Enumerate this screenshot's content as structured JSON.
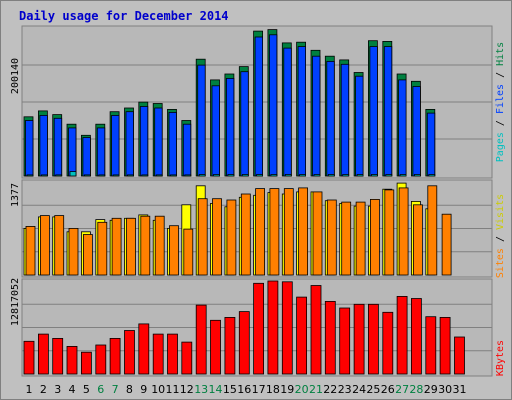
{
  "chart_data": {
    "type": "bar",
    "title": "Daily usage for December 2014",
    "categories": [
      "1",
      "2",
      "3",
      "4",
      "5",
      "6",
      "7",
      "8",
      "9",
      "10",
      "11",
      "12",
      "13",
      "14",
      "15",
      "16",
      "17",
      "18",
      "19",
      "20",
      "21",
      "22",
      "23",
      "24",
      "25",
      "26",
      "27",
      "28",
      "29",
      "30",
      "31"
    ],
    "weekend_days": [
      "6",
      "7",
      "13",
      "14",
      "20",
      "21",
      "27",
      "28"
    ],
    "panels": [
      {
        "name": "hits-files-pages",
        "max_label": "200140",
        "max_value": 200140,
        "axis_label": {
          "pages": "Pages",
          "files": "Files",
          "hits": "Hits",
          "sep": " / "
        },
        "series": [
          {
            "name": "Hits",
            "color": "#008040",
            "values": [
              80000,
              88000,
              83000,
              70000,
              55000,
              70000,
              87000,
              92000,
              100000,
              98000,
              90000,
              75000,
              158000,
              130000,
              138000,
              148000,
              196000,
              198000,
              180000,
              181000,
              170000,
              162000,
              157000,
              140000,
              183000,
              182000,
              138000,
              128000,
              90000,
              0,
              0
            ]
          },
          {
            "name": "Files",
            "color": "#0040ff",
            "values": [
              75000,
              82000,
              78000,
              65000,
              52000,
              65000,
              82000,
              87000,
              94000,
              92000,
              86000,
              70000,
              150000,
              122000,
              132000,
              141000,
              188000,
              191000,
              173000,
              175000,
              162000,
              155000,
              151000,
              135000,
              175000,
              175000,
              130000,
              121000,
              85000,
              0,
              0
            ]
          },
          {
            "name": "Pages",
            "color": "#00c0c0",
            "values": [
              1500,
              1500,
              1500,
              6000,
              1500,
              1500,
              1500,
              1500,
              1500,
              1500,
              1500,
              1500,
              2000,
              2000,
              2000,
              2000,
              2000,
              2000,
              2000,
              2000,
              2000,
              2000,
              2000,
              2000,
              2000,
              2000,
              2000,
              2000,
              2000,
              0,
              0
            ]
          }
        ]
      },
      {
        "name": "visits-sites",
        "max_label": "1377",
        "max_value": 1377,
        "axis_label": {
          "sites": "Sites",
          "visits": "Visits",
          "sep": " / "
        },
        "series": [
          {
            "name": "Visits",
            "color": "#ffff00",
            "values": [
              690,
              860,
              860,
              640,
              640,
              820,
              810,
              840,
              890,
              810,
              690,
              1040,
              1320,
              1060,
              1010,
              1150,
              1180,
              1220,
              1200,
              1230,
              1230,
              1100,
              1060,
              1020,
              1020,
              1270,
              1360,
              1090,
              980,
              0,
              0
            ]
          },
          {
            "name": "Sites",
            "color": "#ff8000",
            "values": [
              720,
              880,
              880,
              690,
              600,
              780,
              840,
              840,
              870,
              870,
              730,
              680,
              1130,
              1130,
              1110,
              1200,
              1280,
              1280,
              1280,
              1290,
              1230,
              1110,
              1080,
              1080,
              1120,
              1260,
              1290,
              1040,
              1320,
              900,
              0
            ]
          }
        ]
      },
      {
        "name": "kbytes",
        "max_label": "12817052",
        "max_value": 12817052,
        "axis_label": {
          "kbytes": "KBytes"
        },
        "series": [
          {
            "name": "KBytes",
            "color": "#ff0000",
            "values": [
              4500000,
              5500000,
              4900000,
              3800000,
              3000000,
              4000000,
              4900000,
              6000000,
              6900000,
              5500000,
              5500000,
              4400000,
              9500000,
              7400000,
              7800000,
              8600000,
              12500000,
              12817052,
              12700000,
              10600000,
              12200000,
              10000000,
              9100000,
              9600000,
              9600000,
              8500000,
              10700000,
              10400000,
              7900000,
              7800000,
              5100000
            ]
          }
        ]
      }
    ]
  }
}
